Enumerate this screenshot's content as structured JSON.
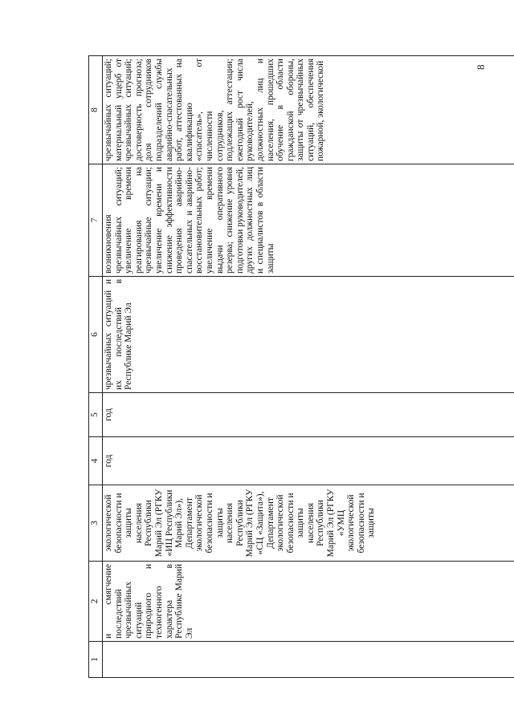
{
  "page_number": "8",
  "table": {
    "header": [
      "1",
      "2",
      "3",
      "4",
      "5",
      "6",
      "7",
      "8"
    ],
    "rows": [
      [
        "и смягчение последствий чрезвычайных ситуаций природного и техногенного характера в Республике Марий Эл",
        "экологической безопасности и защиты населения Республики Марий Эл (РГКУ «ИЦ Республики Марий Эл»), Департамент экологической безопасности и защиты населения Республики Марий Эл (РГКУ «СЦ «Защита»), Департамент экологической безопасности и защиты населения Республики Марий Эл (РГКУ «УМЦ экологической безопасности и защиты",
        "год",
        "год",
        "чрезвычайных ситуаций и их последствий в Республике Марий Эл",
        "возникновения чрезвычайных ситуаций; увеличение времени реагирования на чрезвычайные ситуации; увеличение времени и снижение эффективности проведения аварийно-спасательных и аварийно-восстановительных работ; увеличение времени выдачи оперативного резерва; снижение уровня подготовки руководителей, других должностных лиц и специалистов в области защиты",
        "чрезвычайных ситуаций; материальный ущерб от чрезвычайных ситуаций; достоверность прогноза; доля сотрудников подразделений службы аварийно-спасательных работ, аттестованных на квалификацию «спасатель», от численности сотрудников, подлежащих аттестации; ежегодный рост числа руководителей, должностных лиц и населения, прошедших обучение в области гражданской обороны, защиты от чрезвычайных ситуаций, обеспечения пожарной, экологической"
      ]
    ]
  }
}
